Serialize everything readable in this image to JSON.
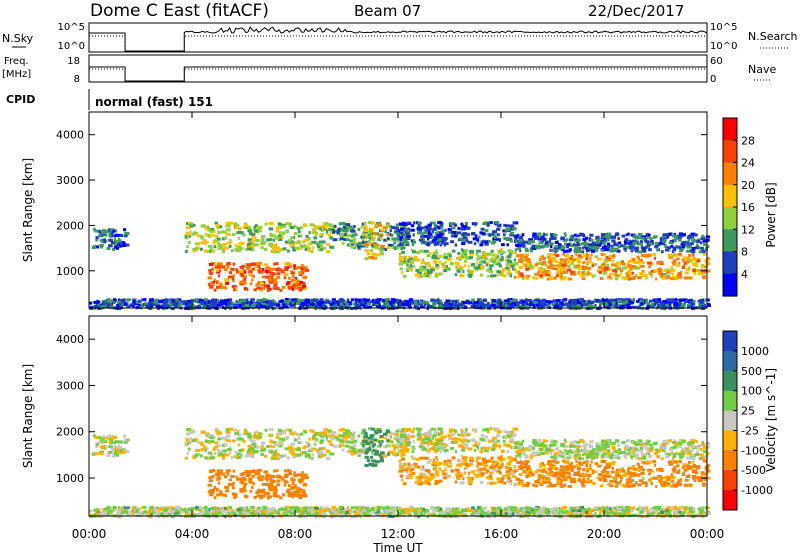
{
  "header": {
    "station": "Dome C East (fitACF)",
    "beam": "Beam 07",
    "date": "22/Dec/2017"
  },
  "top_panels": {
    "nsky_label": "N.Sky",
    "nsky_ticks": [
      "10^5",
      "10^0"
    ],
    "nsearch_label": "N.Search",
    "nsearch_ticks": [
      "10^5",
      "10^0"
    ],
    "freq_label_line1": "Freq.",
    "freq_label_line2": "[MHz]",
    "freq_ticks": [
      "18",
      "8"
    ],
    "nave_label": "Nave",
    "nave_ticks": [
      "60",
      "0"
    ],
    "cpid_label": "CPID",
    "cpid_text": "normal (fast) 151"
  },
  "axes": {
    "ylabel": "Slant Range [km]",
    "y_ticks": [
      "4000",
      "3000",
      "2000",
      "1000"
    ],
    "x_ticks": [
      "00:00",
      "04:00",
      "08:00",
      "12:00",
      "16:00",
      "20:00",
      "00:00"
    ],
    "xlabel": "Time UT"
  },
  "power_scale": {
    "label": "Power [dB]",
    "ticks": [
      "28",
      "24",
      "20",
      "16",
      "12",
      "8",
      "4"
    ],
    "colors": [
      "#ff0000",
      "#ff4000",
      "#ff8000",
      "#ffc000",
      "#8fd13a",
      "#3c9a5c",
      "#1f3fbf",
      "#0000ff"
    ]
  },
  "velocity_scale": {
    "label": "Velocity [m s^-1]",
    "ticks": [
      "1000",
      "500",
      "100",
      "25",
      "-25",
      "-100",
      "-500",
      "-1000"
    ],
    "colors": [
      "#2040c0",
      "#2d6ba8",
      "#3a9060",
      "#70cc40",
      "#c8c8c0",
      "#ffb000",
      "#ff8000",
      "#ff4000",
      "#ff0000"
    ]
  },
  "chart_data": {
    "type": "heatmap",
    "title": "Dome C East (fitACF)",
    "xlabel": "Time UT",
    "ylabel": "Slant Range [km]",
    "xlim": [
      0,
      24
    ],
    "ylim": [
      180,
      4500
    ],
    "data_gaps_hours": [
      [
        1.4,
        3.7
      ]
    ],
    "scatter_features": [
      {
        "t_start": 0.1,
        "t_end": 1.4,
        "range_min": 1500,
        "range_max": 1950,
        "power_db": 7,
        "velocity": 0
      },
      {
        "t_start": 3.7,
        "t_end": 9.3,
        "range_min": 1450,
        "range_max": 2100,
        "power_db": 14,
        "velocity": 0
      },
      {
        "t_start": 4.6,
        "t_end": 8.4,
        "range_min": 600,
        "range_max": 1200,
        "power_db": 24,
        "velocity": -300
      },
      {
        "t_start": 9.2,
        "t_end": 12.3,
        "range_min": 1500,
        "range_max": 2100,
        "power_db": 10,
        "velocity": 0
      },
      {
        "t_start": 10.6,
        "t_end": 11.6,
        "range_min": 1300,
        "range_max": 2100,
        "power_db": 18,
        "velocity": 300
      },
      {
        "t_start": 12.0,
        "t_end": 16.5,
        "range_min": 900,
        "range_max": 1500,
        "power_db": 14,
        "velocity": -80
      },
      {
        "t_start": 12.0,
        "t_end": 16.5,
        "range_min": 1600,
        "range_max": 2100,
        "power_db": 6,
        "velocity": 0
      },
      {
        "t_start": 16.5,
        "t_end": 24.0,
        "range_min": 850,
        "range_max": 1400,
        "power_db": 20,
        "velocity": -150
      },
      {
        "t_start": 16.5,
        "t_end": 24.0,
        "range_min": 1450,
        "range_max": 1850,
        "power_db": 7,
        "velocity": 20
      },
      {
        "t_start": 0.0,
        "t_end": 24.0,
        "range_min": 200,
        "range_max": 400,
        "power_db": 6,
        "velocity": 30
      }
    ]
  }
}
